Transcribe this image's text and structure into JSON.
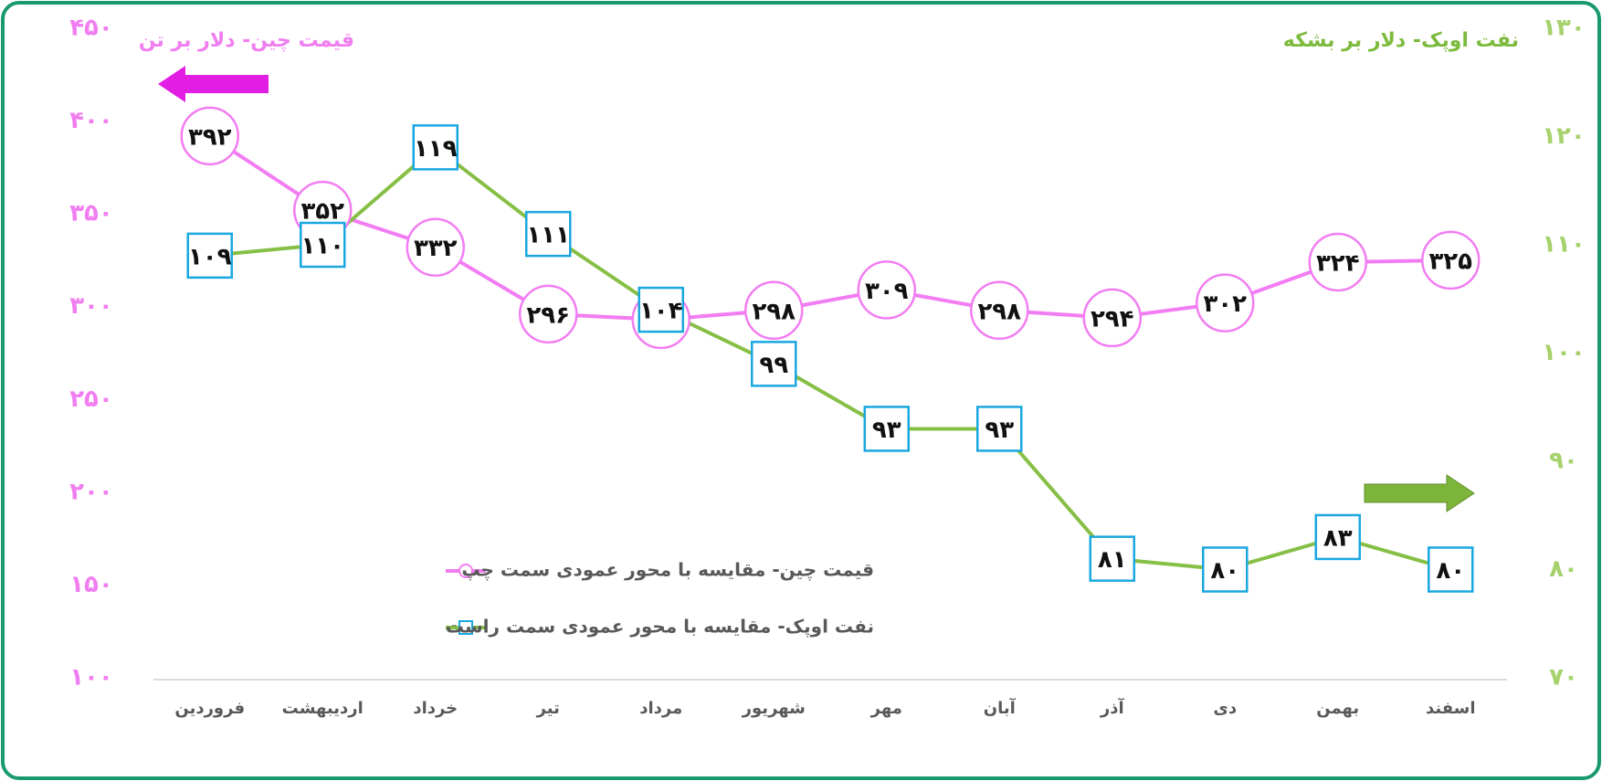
{
  "chart_data": {
    "type": "line",
    "y_title": "قیمت چین- دلار بر تن",
    "y2_title": "نفت اوپک- دلار بر بشکه",
    "categories": [
      "فروردین",
      "اردیبهشت",
      "خرداد",
      "تیر",
      "مرداد",
      "شهریور",
      "مهر",
      "آبان",
      "آذر",
      "دی",
      "بهمن",
      "اسفند"
    ],
    "series": [
      {
        "name": "قیمت چین- مقایسه با محور عمودی سمت چپ",
        "color": "#f27df2",
        "marker": "circle",
        "axis": "y",
        "values": [
          392,
          352,
          332,
          296,
          293,
          298,
          309,
          298,
          294,
          302,
          324,
          325
        ],
        "value_labels": [
          "۳۹۲",
          "۳۵۲",
          "۳۳۲",
          "۲۹۶",
          "۲۹۳",
          "۲۹۸",
          "۳۰۹",
          "۲۹۸",
          "۲۹۴",
          "۳۰۲",
          "۳۲۴",
          "۳۲۵"
        ]
      },
      {
        "name": "نفت اوپک- مقایسه با محور عمودی سمت راست",
        "color": "#86bf45",
        "marker": "square",
        "marker_color": "#1aa7e0",
        "axis": "y2",
        "values": [
          109,
          110,
          119,
          111,
          104,
          99,
          93,
          93,
          81,
          80,
          83,
          80
        ],
        "value_labels": [
          "۱۰۹",
          "۱۱۰",
          "۱۱۹",
          "۱۱۱",
          "۱۰۴",
          "۹۹",
          "۹۳",
          "۹۳",
          "۸۱",
          "۸۰",
          "۸۳",
          "۸۰"
        ]
      }
    ],
    "ylim": [
      100,
      450
    ],
    "yticks": [
      {
        "value": 100,
        "label": "۱۰۰"
      },
      {
        "value": 150,
        "label": "۱۵۰"
      },
      {
        "value": 200,
        "label": "۲۰۰"
      },
      {
        "value": 250,
        "label": "۲۵۰"
      },
      {
        "value": 300,
        "label": "۳۰۰"
      },
      {
        "value": 350,
        "label": "۳۵۰"
      },
      {
        "value": 400,
        "label": "۴۰۰"
      },
      {
        "value": 450,
        "label": "۴۵۰"
      }
    ],
    "y2lim": [
      70,
      130
    ],
    "y2ticks": [
      {
        "value": 70,
        "label": "۷۰"
      },
      {
        "value": 80,
        "label": "۸۰"
      },
      {
        "value": 90,
        "label": "۹۰"
      },
      {
        "value": 100,
        "label": "۱۰۰"
      },
      {
        "value": 110,
        "label": "۱۱۰"
      },
      {
        "value": 120,
        "label": "۱۲۰"
      },
      {
        "value": 130,
        "label": "۱۳۰"
      }
    ],
    "y_color": "#f07ef0",
    "y2_color": "#a6d16b",
    "grid": false
  }
}
